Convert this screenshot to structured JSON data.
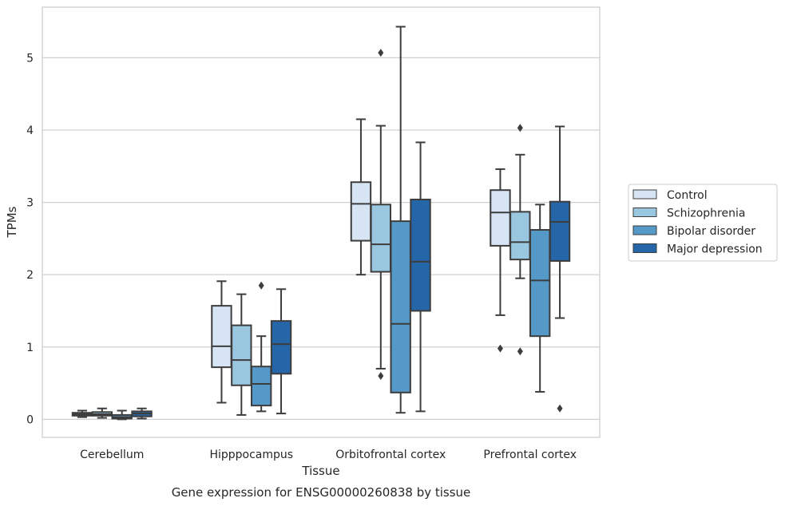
{
  "chart_data": {
    "type": "box",
    "title": "",
    "caption": "Gene expression for ENSG00000260838 by tissue",
    "xlabel": "Tissue",
    "ylabel": "TPMs",
    "ylim": [
      -0.25,
      5.7
    ],
    "yticks": [
      0,
      1,
      2,
      3,
      4,
      5
    ],
    "grid": true,
    "legend_position": "right",
    "categories": [
      "Cerebellum",
      "Hipppocampus",
      "Orbitofrontal cortex",
      "Prefrontal cortex"
    ],
    "series": [
      {
        "name": "Control",
        "color": "#d6e4f3",
        "boxes": [
          {
            "whislo": 0.03,
            "q1": 0.05,
            "med": 0.07,
            "q3": 0.09,
            "whishi": 0.12,
            "fliers": []
          },
          {
            "whislo": 0.23,
            "q1": 0.72,
            "med": 1.01,
            "q3": 1.57,
            "whishi": 1.91,
            "fliers": []
          },
          {
            "whislo": 2.0,
            "q1": 2.47,
            "med": 2.98,
            "q3": 3.28,
            "whishi": 4.15,
            "fliers": []
          },
          {
            "whislo": 1.44,
            "q1": 2.4,
            "med": 2.86,
            "q3": 3.17,
            "whishi": 3.46,
            "fliers": [
              0.98
            ]
          }
        ]
      },
      {
        "name": "Schizophrenia",
        "color": "#9ac7e0",
        "boxes": [
          {
            "whislo": 0.02,
            "q1": 0.05,
            "med": 0.07,
            "q3": 0.1,
            "whishi": 0.15,
            "fliers": []
          },
          {
            "whislo": 0.06,
            "q1": 0.47,
            "med": 0.82,
            "q3": 1.3,
            "whishi": 1.73,
            "fliers": []
          },
          {
            "whislo": 0.7,
            "q1": 2.04,
            "med": 2.42,
            "q3": 2.97,
            "whishi": 4.06,
            "fliers": [
              5.07,
              0.6
            ]
          },
          {
            "whislo": 1.95,
            "q1": 2.21,
            "med": 2.45,
            "q3": 2.87,
            "whishi": 3.66,
            "fliers": [
              4.03,
              0.94
            ]
          }
        ]
      },
      {
        "name": "Bipolar disorder",
        "color": "#5599c8",
        "boxes": [
          {
            "whislo": 0.0,
            "q1": 0.01,
            "med": 0.03,
            "q3": 0.06,
            "whishi": 0.12,
            "fliers": []
          },
          {
            "whislo": 0.11,
            "q1": 0.19,
            "med": 0.49,
            "q3": 0.73,
            "whishi": 1.15,
            "fliers": [
              1.85
            ]
          },
          {
            "whislo": 0.09,
            "q1": 0.37,
            "med": 1.32,
            "q3": 2.74,
            "whishi": 5.43,
            "fliers": []
          },
          {
            "whislo": 0.38,
            "q1": 1.15,
            "med": 1.92,
            "q3": 2.62,
            "whishi": 2.97,
            "fliers": []
          }
        ]
      },
      {
        "name": "Major depression",
        "color": "#2466a8",
        "boxes": [
          {
            "whislo": 0.01,
            "q1": 0.04,
            "med": 0.08,
            "q3": 0.11,
            "whishi": 0.15,
            "fliers": []
          },
          {
            "whislo": 0.08,
            "q1": 0.63,
            "med": 1.04,
            "q3": 1.36,
            "whishi": 1.8,
            "fliers": []
          },
          {
            "whislo": 0.11,
            "q1": 1.5,
            "med": 2.18,
            "q3": 3.04,
            "whishi": 3.83,
            "fliers": []
          },
          {
            "whislo": 1.4,
            "q1": 2.19,
            "med": 2.73,
            "q3": 3.01,
            "whishi": 4.05,
            "fliers": [
              0.15
            ]
          }
        ]
      }
    ]
  }
}
